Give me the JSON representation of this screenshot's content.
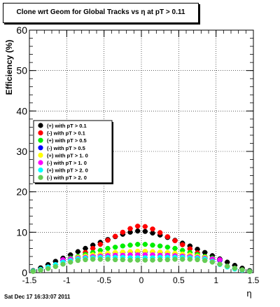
{
  "chart_data": {
    "type": "scatter",
    "title": "Clone wrt Geom for Global Tracks vs   η at pT > 0.11",
    "xlabel": "η",
    "ylabel": "Efficiency (%)",
    "xlim": [
      -1.5,
      1.5
    ],
    "ylim": [
      0,
      60
    ],
    "xticks": [
      "-1.5",
      "-1",
      "-0.5",
      "0",
      "0.5",
      "1",
      "1.5"
    ],
    "yticks": [
      "0",
      "10",
      "20",
      "30",
      "40",
      "50",
      "60"
    ],
    "grid": true,
    "legend_position": "middle-left",
    "series": [
      {
        "name": "(+) with pT > 0.1",
        "color": "#000000",
        "x": [
          -1.45,
          -1.35,
          -1.25,
          -1.15,
          -1.05,
          -0.95,
          -0.85,
          -0.75,
          -0.65,
          -0.55,
          -0.45,
          -0.35,
          -0.25,
          -0.15,
          -0.05,
          0.05,
          0.15,
          0.25,
          0.35,
          0.45,
          0.55,
          0.65,
          0.75,
          0.85,
          0.95,
          1.05,
          1.15,
          1.25,
          1.35,
          1.45
        ],
        "y": [
          0.5,
          1.2,
          2.0,
          2.8,
          3.6,
          4.4,
          5.2,
          6.0,
          6.8,
          7.5,
          8.2,
          8.9,
          9.5,
          10.0,
          10.3,
          10.2,
          9.8,
          9.3,
          8.7,
          8.0,
          7.3,
          6.6,
          5.8,
          5.0,
          4.2,
          3.4,
          2.6,
          1.8,
          1.1,
          0.5
        ]
      },
      {
        "name": "(-) with pT > 0.1",
        "color": "#ff0000",
        "x": [
          -0.75,
          -0.65,
          -0.55,
          -0.45,
          -0.35,
          -0.25,
          -0.15,
          -0.05,
          0.05,
          0.15,
          0.25,
          0.35,
          0.45,
          0.55,
          0.65,
          0.75
        ],
        "y": [
          5.0,
          6.0,
          7.0,
          8.0,
          9.0,
          10.0,
          10.9,
          11.5,
          11.4,
          10.8,
          9.9,
          8.9,
          7.9,
          6.9,
          5.9,
          4.9
        ]
      },
      {
        "name": "(+) with pT > 0.5",
        "color": "#00ee00",
        "x": [
          -0.95,
          -0.85,
          -0.75,
          -0.65,
          -0.55,
          -0.45,
          -0.35,
          -0.25,
          -0.15,
          -0.05,
          0.05,
          0.15,
          0.25,
          0.35,
          0.45,
          0.55,
          0.65,
          0.75,
          0.85,
          0.95
        ],
        "y": [
          3.6,
          4.0,
          4.5,
          5.0,
          5.5,
          6.0,
          6.3,
          6.6,
          6.8,
          7.0,
          7.0,
          6.8,
          6.6,
          6.3,
          6.0,
          5.5,
          5.0,
          4.5,
          4.0,
          3.6
        ]
      },
      {
        "name": "(-) with pT > 0.5",
        "color": "#0000ff",
        "x": [
          -1.05,
          -0.95,
          -0.85,
          -0.75,
          -0.65,
          -0.55,
          -0.45,
          -0.35,
          -0.25,
          -0.15,
          -0.05,
          0.05,
          0.15,
          0.25,
          0.35,
          0.45,
          0.55,
          0.65,
          0.75,
          0.85,
          0.95,
          1.05
        ],
        "y": [
          3.0,
          3.3,
          3.6,
          3.9,
          4.2,
          4.5,
          4.7,
          4.9,
          5.0,
          5.1,
          5.1,
          5.1,
          5.1,
          5.0,
          4.9,
          4.7,
          4.5,
          4.2,
          3.9,
          3.6,
          3.3,
          3.0
        ]
      },
      {
        "name": "(+) with pT > 1. 0",
        "color": "#ffff00",
        "x": [
          -0.85,
          -0.75,
          -0.65,
          -0.55,
          -0.45,
          -0.35,
          -0.25,
          -0.15,
          -0.05,
          0.05,
          0.15,
          0.25,
          0.35,
          0.45,
          0.55,
          0.65,
          0.75,
          0.85
        ],
        "y": [
          3.8,
          4.1,
          4.4,
          4.6,
          4.8,
          5.0,
          5.1,
          5.2,
          5.3,
          5.3,
          5.2,
          5.1,
          5.0,
          4.8,
          4.6,
          4.4,
          4.1,
          3.8
        ]
      },
      {
        "name": "(-) with pT > 1. 0",
        "color": "#ff00ff",
        "x": [
          -1.05,
          -0.95,
          -0.85,
          -0.75,
          -0.65,
          -0.55,
          -0.45,
          -0.35,
          -0.25,
          -0.15,
          -0.05,
          0.05,
          0.15,
          0.25,
          0.35,
          0.45,
          0.55,
          0.65,
          0.75,
          0.85,
          0.95,
          1.05
        ],
        "y": [
          3.2,
          3.4,
          3.6,
          3.8,
          4.0,
          4.1,
          4.2,
          4.3,
          4.3,
          4.4,
          4.4,
          4.4,
          4.4,
          4.3,
          4.3,
          4.2,
          4.1,
          4.0,
          3.8,
          3.6,
          3.4,
          3.2
        ]
      },
      {
        "name": "(+) with pT > 2. 0",
        "color": "#00ffff",
        "x": [
          -1.45,
          -1.35,
          -1.25,
          -1.15,
          -1.05,
          -0.95,
          -0.85,
          -0.75,
          -0.65,
          -0.55,
          -0.45,
          -0.35,
          -0.25,
          -0.15,
          -0.05,
          0.05,
          0.15,
          0.25,
          0.35,
          0.45,
          0.55,
          0.65,
          0.75,
          0.85,
          0.95,
          1.05,
          1.15,
          1.25,
          1.35,
          1.45
        ],
        "y": [
          0.4,
          0.8,
          1.4,
          2.0,
          2.6,
          3.0,
          3.4,
          3.6,
          3.7,
          3.8,
          3.8,
          3.8,
          3.8,
          3.7,
          3.7,
          3.7,
          3.7,
          3.8,
          3.8,
          3.8,
          3.8,
          3.7,
          3.6,
          3.4,
          2.8,
          2.0,
          1.4,
          0.9,
          0.6,
          0.3
        ]
      },
      {
        "name": "(-) with pT > 2. 0",
        "color": "#66cc55",
        "x": [
          -1.45,
          -1.35,
          -1.25,
          -1.15,
          -1.05,
          -0.95,
          -0.85,
          -0.75,
          -0.65,
          -0.55,
          -0.45,
          -0.35,
          -0.25,
          -0.15,
          -0.05,
          0.05,
          0.15,
          0.25,
          0.35,
          0.45,
          0.55,
          0.65,
          0.75,
          0.85,
          0.95,
          1.05,
          1.15,
          1.25,
          1.35,
          1.45
        ],
        "y": [
          0.3,
          0.6,
          1.0,
          1.5,
          2.1,
          2.6,
          3.0,
          3.2,
          3.3,
          3.3,
          3.3,
          3.2,
          3.2,
          3.1,
          3.1,
          3.1,
          3.1,
          3.2,
          3.2,
          3.3,
          3.3,
          3.3,
          3.2,
          3.0,
          2.6,
          2.1,
          1.6,
          1.1,
          0.7,
          0.3
        ]
      }
    ]
  },
  "footer": {
    "timestamp": "Sat Dec 17 16:33:07 2011"
  }
}
